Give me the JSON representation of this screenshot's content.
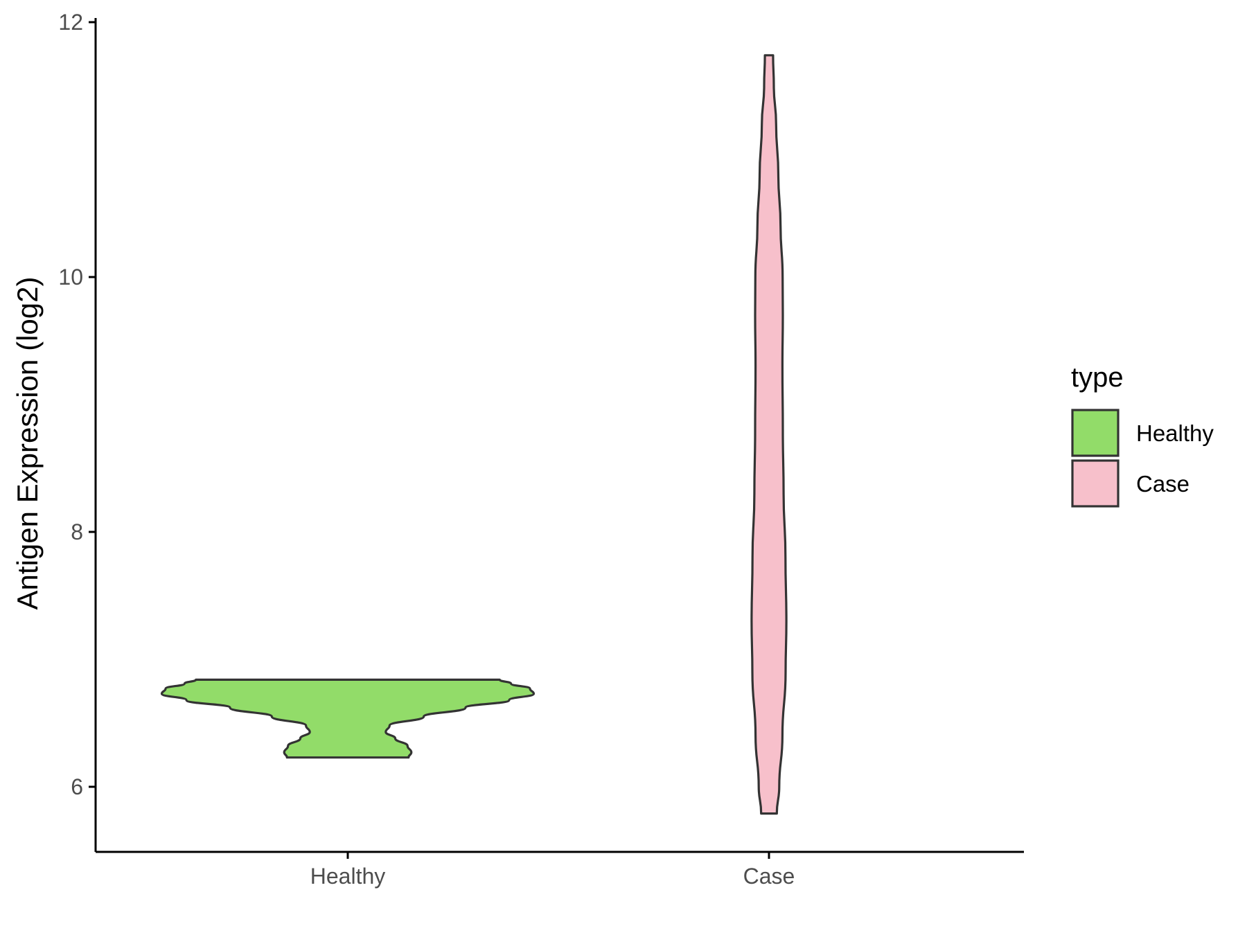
{
  "chart_data": {
    "type": "violin",
    "title": "",
    "xlabel": "",
    "ylabel": "Antigen Expression (log2)",
    "categories": [
      "Healthy",
      "Case"
    ],
    "ylim": [
      5.5,
      12
    ],
    "yticks": [
      6,
      8,
      10,
      12
    ],
    "grid": false,
    "legend": {
      "title": "type",
      "position": "right",
      "entries": [
        {
          "label": "Healthy",
          "color": "#92dc69"
        },
        {
          "label": "Case",
          "color": "#f7c0cb"
        }
      ]
    },
    "series": [
      {
        "category": "Healthy",
        "color": "#92dc69",
        "min": 6.23,
        "max": 6.84,
        "density_profile": [
          [
            6.23,
            0.32
          ],
          [
            6.27,
            0.335
          ],
          [
            6.32,
            0.315
          ],
          [
            6.38,
            0.25
          ],
          [
            6.43,
            0.2
          ],
          [
            6.48,
            0.22
          ],
          [
            6.55,
            0.4
          ],
          [
            6.62,
            0.62
          ],
          [
            6.68,
            0.85
          ],
          [
            6.73,
            0.98
          ],
          [
            6.77,
            0.96
          ],
          [
            6.81,
            0.86
          ],
          [
            6.84,
            0.8
          ]
        ]
      },
      {
        "category": "Case",
        "color": "#f7c0cb",
        "min": 5.79,
        "max": 11.74,
        "density_profile": [
          [
            5.79,
            0.42
          ],
          [
            6.0,
            0.55
          ],
          [
            6.4,
            0.72
          ],
          [
            6.9,
            0.89
          ],
          [
            7.3,
            0.93
          ],
          [
            7.8,
            0.88
          ],
          [
            8.3,
            0.78
          ],
          [
            8.8,
            0.74
          ],
          [
            9.3,
            0.72
          ],
          [
            9.7,
            0.74
          ],
          [
            10.0,
            0.73
          ],
          [
            10.4,
            0.62
          ],
          [
            10.8,
            0.5
          ],
          [
            11.2,
            0.38
          ],
          [
            11.5,
            0.26
          ],
          [
            11.74,
            0.22
          ]
        ]
      }
    ]
  }
}
